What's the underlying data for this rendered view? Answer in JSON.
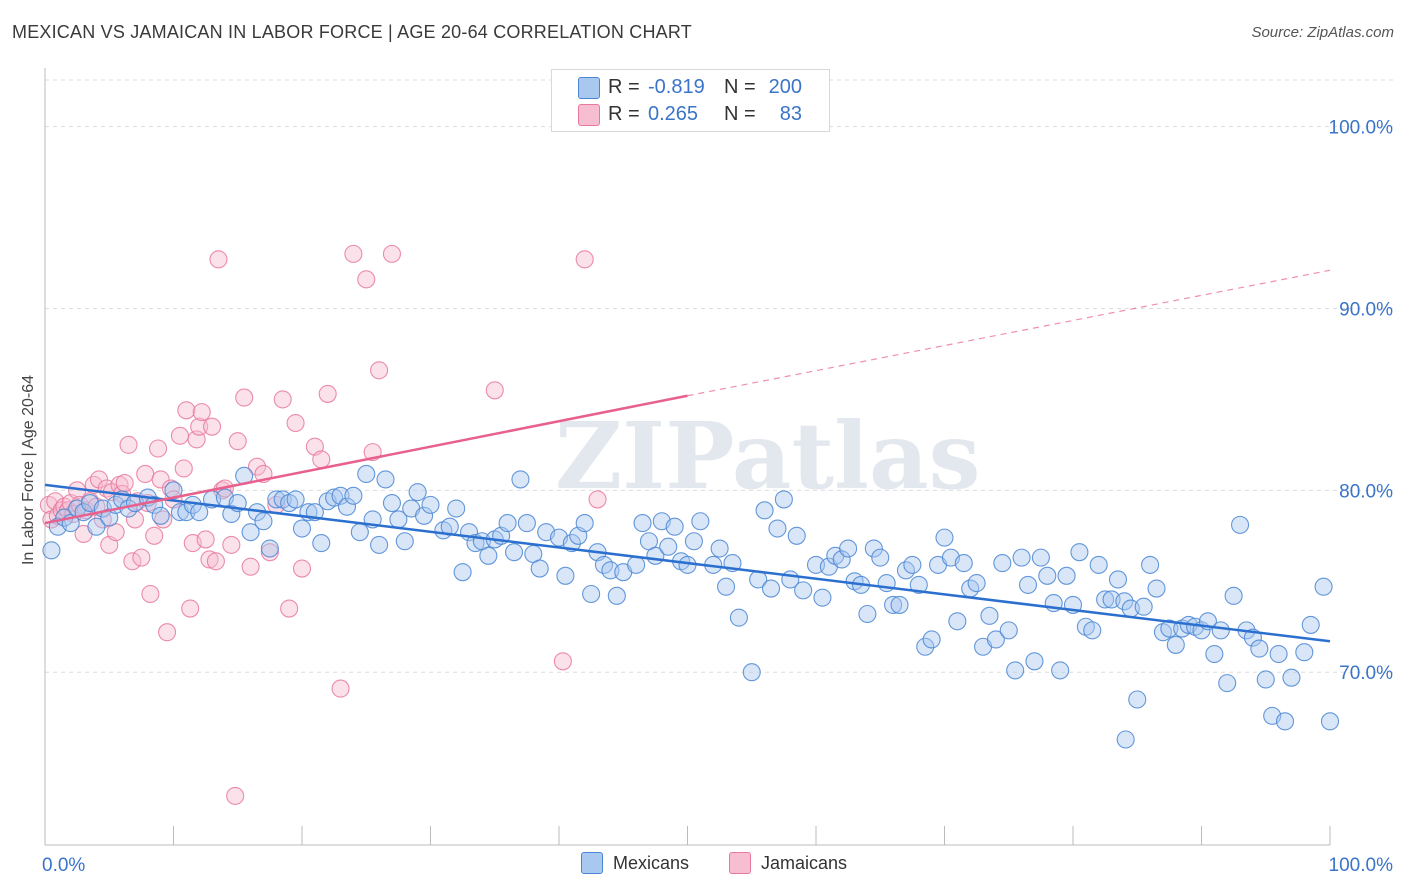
{
  "title": "MEXICAN VS JAMAICAN IN LABOR FORCE | AGE 20-64 CORRELATION CHART",
  "source": "Source: ZipAtlas.com",
  "watermark": "ZIPatlas",
  "legend": {
    "rows": [
      {
        "r_label": "R =",
        "r_value": "-0.819",
        "n_label": "N =",
        "n_value": "200"
      },
      {
        "r_label": "R =",
        "r_value": "0.265",
        "n_label": "N =",
        "n_value": "83"
      }
    ]
  },
  "bottom_legend": [
    "Mexicans",
    "Jamaicans"
  ],
  "colors": {
    "blue_fill": "#a9c8f0",
    "blue_stroke": "#4a86d4",
    "blue_line": "#2b6fcf",
    "pink_fill": "#f7bdd0",
    "pink_stroke": "#e8799c",
    "pink_line": "#e8608c",
    "axis_label": "#3a74c9",
    "grid": "#dddddd"
  },
  "chart_data": {
    "type": "scatter",
    "title": "MEXICAN VS JAMAICAN IN LABOR FORCE | AGE 20-64 CORRELATION CHART",
    "xlabel": "",
    "ylabel": "In Labor Force | Age 20-64",
    "xlim": [
      0,
      100
    ],
    "ylim": [
      60.5,
      103
    ],
    "x_tick_labels": [
      "0.0%",
      "100.0%"
    ],
    "y_ticks": [
      70,
      80,
      90,
      100
    ],
    "y_tick_labels": [
      "70.0%",
      "80.0%",
      "90.0%",
      "100.0%"
    ],
    "grid": true,
    "legend_position": "bottom",
    "series": [
      {
        "name": "Mexicans",
        "r": -0.819,
        "n": 200,
        "trend": {
          "x": [
            0,
            100
          ],
          "y": [
            80.3,
            71.7
          ]
        },
        "points": [
          [
            0.5,
            76.7
          ],
          [
            1,
            78
          ],
          [
            1.5,
            78.5
          ],
          [
            2,
            78.2
          ],
          [
            2.5,
            79
          ],
          [
            3,
            78.8
          ],
          [
            3.5,
            79.3
          ],
          [
            4,
            78
          ],
          [
            4.5,
            79
          ],
          [
            5,
            78.5
          ],
          [
            5.5,
            79.2
          ],
          [
            6,
            79.5
          ],
          [
            6.5,
            79
          ],
          [
            7,
            79.3
          ],
          [
            8,
            79.6
          ],
          [
            8.5,
            79.2
          ],
          [
            9,
            78.6
          ],
          [
            10,
            80
          ],
          [
            10.5,
            78.8
          ],
          [
            11,
            78.8
          ],
          [
            11.5,
            79.2
          ],
          [
            12,
            78.8
          ],
          [
            13,
            79.5
          ],
          [
            14,
            79.6
          ],
          [
            14.5,
            78.7
          ],
          [
            15,
            79.3
          ],
          [
            15.5,
            80.8
          ],
          [
            16,
            77.7
          ],
          [
            16.5,
            78.8
          ],
          [
            17,
            78.3
          ],
          [
            17.5,
            76.8
          ],
          [
            18,
            79.5
          ],
          [
            18.5,
            79.5
          ],
          [
            19,
            79.3
          ],
          [
            19.5,
            79.5
          ],
          [
            20,
            77.9
          ],
          [
            20.5,
            78.8
          ],
          [
            21,
            78.8
          ],
          [
            21.5,
            77.1
          ],
          [
            22,
            79.4
          ],
          [
            22.5,
            79.6
          ],
          [
            23,
            79.7
          ],
          [
            23.5,
            79.1
          ],
          [
            24,
            79.7
          ],
          [
            24.5,
            77.7
          ],
          [
            25,
            80.9
          ],
          [
            25.5,
            78.4
          ],
          [
            26,
            77
          ],
          [
            26.5,
            80.6
          ],
          [
            27,
            79.3
          ],
          [
            27.5,
            78.4
          ],
          [
            28,
            77.2
          ],
          [
            28.5,
            79
          ],
          [
            29,
            79.9
          ],
          [
            29.5,
            78.6
          ],
          [
            30,
            79.2
          ],
          [
            31,
            77.8
          ],
          [
            31.5,
            78
          ],
          [
            32,
            79
          ],
          [
            32.5,
            75.5
          ],
          [
            33,
            77.7
          ],
          [
            33.5,
            77.1
          ],
          [
            34,
            77.2
          ],
          [
            34.5,
            76.4
          ],
          [
            35,
            77.3
          ],
          [
            35.5,
            77.5
          ],
          [
            36,
            78.2
          ],
          [
            36.5,
            76.6
          ],
          [
            37,
            80.6
          ],
          [
            37.5,
            78.2
          ],
          [
            38,
            76.5
          ],
          [
            38.5,
            75.7
          ],
          [
            39,
            77.7
          ],
          [
            40,
            77.4
          ],
          [
            40.5,
            75.3
          ],
          [
            41,
            77.1
          ],
          [
            41.5,
            77.5
          ],
          [
            42,
            78.2
          ],
          [
            42.5,
            74.3
          ],
          [
            43,
            76.6
          ],
          [
            43.5,
            75.9
          ],
          [
            44,
            75.6
          ],
          [
            44.5,
            74.2
          ],
          [
            45,
            75.5
          ],
          [
            46,
            75.9
          ],
          [
            46.5,
            78.2
          ],
          [
            47,
            77.2
          ],
          [
            47.5,
            76.4
          ],
          [
            48,
            78.3
          ],
          [
            48.5,
            76.9
          ],
          [
            49,
            78
          ],
          [
            49.5,
            76.1
          ],
          [
            50,
            75.9
          ],
          [
            50.5,
            77.2
          ],
          [
            51,
            78.3
          ],
          [
            52,
            75.9
          ],
          [
            52.5,
            76.8
          ],
          [
            53,
            74.7
          ],
          [
            53.5,
            76
          ],
          [
            54,
            73
          ],
          [
            55,
            70
          ],
          [
            55.5,
            75.1
          ],
          [
            56,
            78.9
          ],
          [
            56.5,
            74.6
          ],
          [
            57,
            77.9
          ],
          [
            57.5,
            79.5
          ],
          [
            58,
            75.1
          ],
          [
            58.5,
            77.5
          ],
          [
            59,
            74.5
          ],
          [
            60,
            75.9
          ],
          [
            60.5,
            74.1
          ],
          [
            61,
            75.8
          ],
          [
            61.5,
            76.4
          ],
          [
            62,
            76.2
          ],
          [
            62.5,
            76.8
          ],
          [
            63,
            75
          ],
          [
            63.5,
            74.8
          ],
          [
            64,
            73.2
          ],
          [
            64.5,
            76.8
          ],
          [
            65,
            76.3
          ],
          [
            65.5,
            74.9
          ],
          [
            66,
            73.7
          ],
          [
            66.5,
            73.7
          ],
          [
            67,
            75.6
          ],
          [
            67.5,
            75.9
          ],
          [
            68,
            74.8
          ],
          [
            68.5,
            71.4
          ],
          [
            69,
            71.8
          ],
          [
            69.5,
            75.9
          ],
          [
            70,
            77.4
          ],
          [
            70.5,
            76.3
          ],
          [
            71,
            72.8
          ],
          [
            71.5,
            76
          ],
          [
            72,
            74.6
          ],
          [
            72.5,
            74.9
          ],
          [
            73,
            71.4
          ],
          [
            73.5,
            73.1
          ],
          [
            74,
            71.8
          ],
          [
            74.5,
            76
          ],
          [
            75,
            72.3
          ],
          [
            75.5,
            70.1
          ],
          [
            76,
            76.3
          ],
          [
            76.5,
            74.8
          ],
          [
            77,
            70.6
          ],
          [
            77.5,
            76.3
          ],
          [
            78,
            75.3
          ],
          [
            78.5,
            73.8
          ],
          [
            79,
            70.1
          ],
          [
            79.5,
            75.3
          ],
          [
            80,
            73.7
          ],
          [
            80.5,
            76.6
          ],
          [
            81,
            72.5
          ],
          [
            81.5,
            72.3
          ],
          [
            82,
            75.9
          ],
          [
            82.5,
            74
          ],
          [
            83,
            74
          ],
          [
            83.5,
            75.1
          ],
          [
            84,
            73.9
          ],
          [
            84.5,
            73.5
          ],
          [
            85,
            68.5
          ],
          [
            85.5,
            73.6
          ],
          [
            86,
            75.9
          ],
          [
            86.5,
            74.6
          ],
          [
            87,
            72.2
          ],
          [
            87.5,
            72.4
          ],
          [
            88,
            71.5
          ],
          [
            88.5,
            72.4
          ],
          [
            89,
            72.6
          ],
          [
            89.5,
            72.5
          ],
          [
            90,
            72.3
          ],
          [
            90.5,
            72.8
          ],
          [
            91,
            71
          ],
          [
            91.5,
            72.3
          ],
          [
            92,
            69.4
          ],
          [
            92.5,
            74.2
          ],
          [
            93,
            78.1
          ],
          [
            93.5,
            72.3
          ],
          [
            94,
            71.9
          ],
          [
            94.5,
            71.3
          ],
          [
            95,
            69.6
          ],
          [
            95.5,
            67.6
          ],
          [
            96,
            71
          ],
          [
            96.5,
            67.3
          ],
          [
            97,
            69.7
          ],
          [
            98,
            71.1
          ],
          [
            98.5,
            72.6
          ],
          [
            99.5,
            74.7
          ],
          [
            100,
            67.3
          ],
          [
            84.1,
            66.3
          ]
        ]
      },
      {
        "name": "Jamaicans",
        "r": 0.265,
        "n": 83,
        "trend": {
          "x": [
            0,
            50
          ],
          "y": [
            78.2,
            85.2
          ]
        },
        "trend_dashed": {
          "x": [
            50,
            100
          ],
          "y": [
            85.2,
            92.1
          ]
        },
        "points": [
          [
            0.3,
            79.2
          ],
          [
            0.5,
            78.4
          ],
          [
            0.8,
            79.4
          ],
          [
            1,
            78.6
          ],
          [
            1.3,
            78.9
          ],
          [
            1.5,
            79.1
          ],
          [
            1.8,
            78.9
          ],
          [
            2,
            79.3
          ],
          [
            2.2,
            78.7
          ],
          [
            2.5,
            80
          ],
          [
            2.7,
            79.2
          ],
          [
            3,
            77.6
          ],
          [
            3.2,
            78.9
          ],
          [
            3.5,
            79.4
          ],
          [
            3.8,
            80.3
          ],
          [
            4,
            79.1
          ],
          [
            4.2,
            80.6
          ],
          [
            4.5,
            78.4
          ],
          [
            4.8,
            80.1
          ],
          [
            5,
            77
          ],
          [
            5.2,
            79.9
          ],
          [
            5.5,
            77.7
          ],
          [
            5.8,
            80.3
          ],
          [
            6,
            79.8
          ],
          [
            6.2,
            80.4
          ],
          [
            6.5,
            82.5
          ],
          [
            6.8,
            76.1
          ],
          [
            7,
            78.4
          ],
          [
            7.2,
            79.4
          ],
          [
            7.5,
            76.3
          ],
          [
            7.8,
            80.9
          ],
          [
            8,
            79.3
          ],
          [
            8.2,
            74.3
          ],
          [
            8.5,
            77.5
          ],
          [
            8.8,
            82.3
          ],
          [
            9,
            80.6
          ],
          [
            9.2,
            78.4
          ],
          [
            9.5,
            72.2
          ],
          [
            9.8,
            80.1
          ],
          [
            10,
            79.5
          ],
          [
            10.5,
            83
          ],
          [
            10.8,
            81.2
          ],
          [
            11,
            84.4
          ],
          [
            11.3,
            73.5
          ],
          [
            11.5,
            77.1
          ],
          [
            11.8,
            82.8
          ],
          [
            12,
            83.5
          ],
          [
            12.2,
            84.3
          ],
          [
            12.5,
            77.3
          ],
          [
            12.8,
            76.2
          ],
          [
            13,
            83.5
          ],
          [
            13.3,
            76.1
          ],
          [
            13.5,
            92.7
          ],
          [
            13.8,
            80
          ],
          [
            14,
            80.1
          ],
          [
            14.5,
            77
          ],
          [
            14.8,
            63.2
          ],
          [
            15,
            82.7
          ],
          [
            15.5,
            85.1
          ],
          [
            16,
            75.8
          ],
          [
            16.5,
            81.3
          ],
          [
            17,
            80.9
          ],
          [
            17.5,
            76.6
          ],
          [
            18,
            79.2
          ],
          [
            18.5,
            85
          ],
          [
            19,
            73.5
          ],
          [
            19.5,
            83.7
          ],
          [
            20,
            75.7
          ],
          [
            21,
            82.4
          ],
          [
            21.5,
            81.7
          ],
          [
            22,
            85.3
          ],
          [
            23,
            69.1
          ],
          [
            24,
            93
          ],
          [
            25,
            91.6
          ],
          [
            26,
            86.6
          ],
          [
            27,
            93
          ],
          [
            35,
            85.5
          ],
          [
            40.3,
            70.6
          ],
          [
            42,
            92.7
          ],
          [
            43,
            79.5
          ],
          [
            25.5,
            82.1
          ]
        ]
      }
    ]
  }
}
